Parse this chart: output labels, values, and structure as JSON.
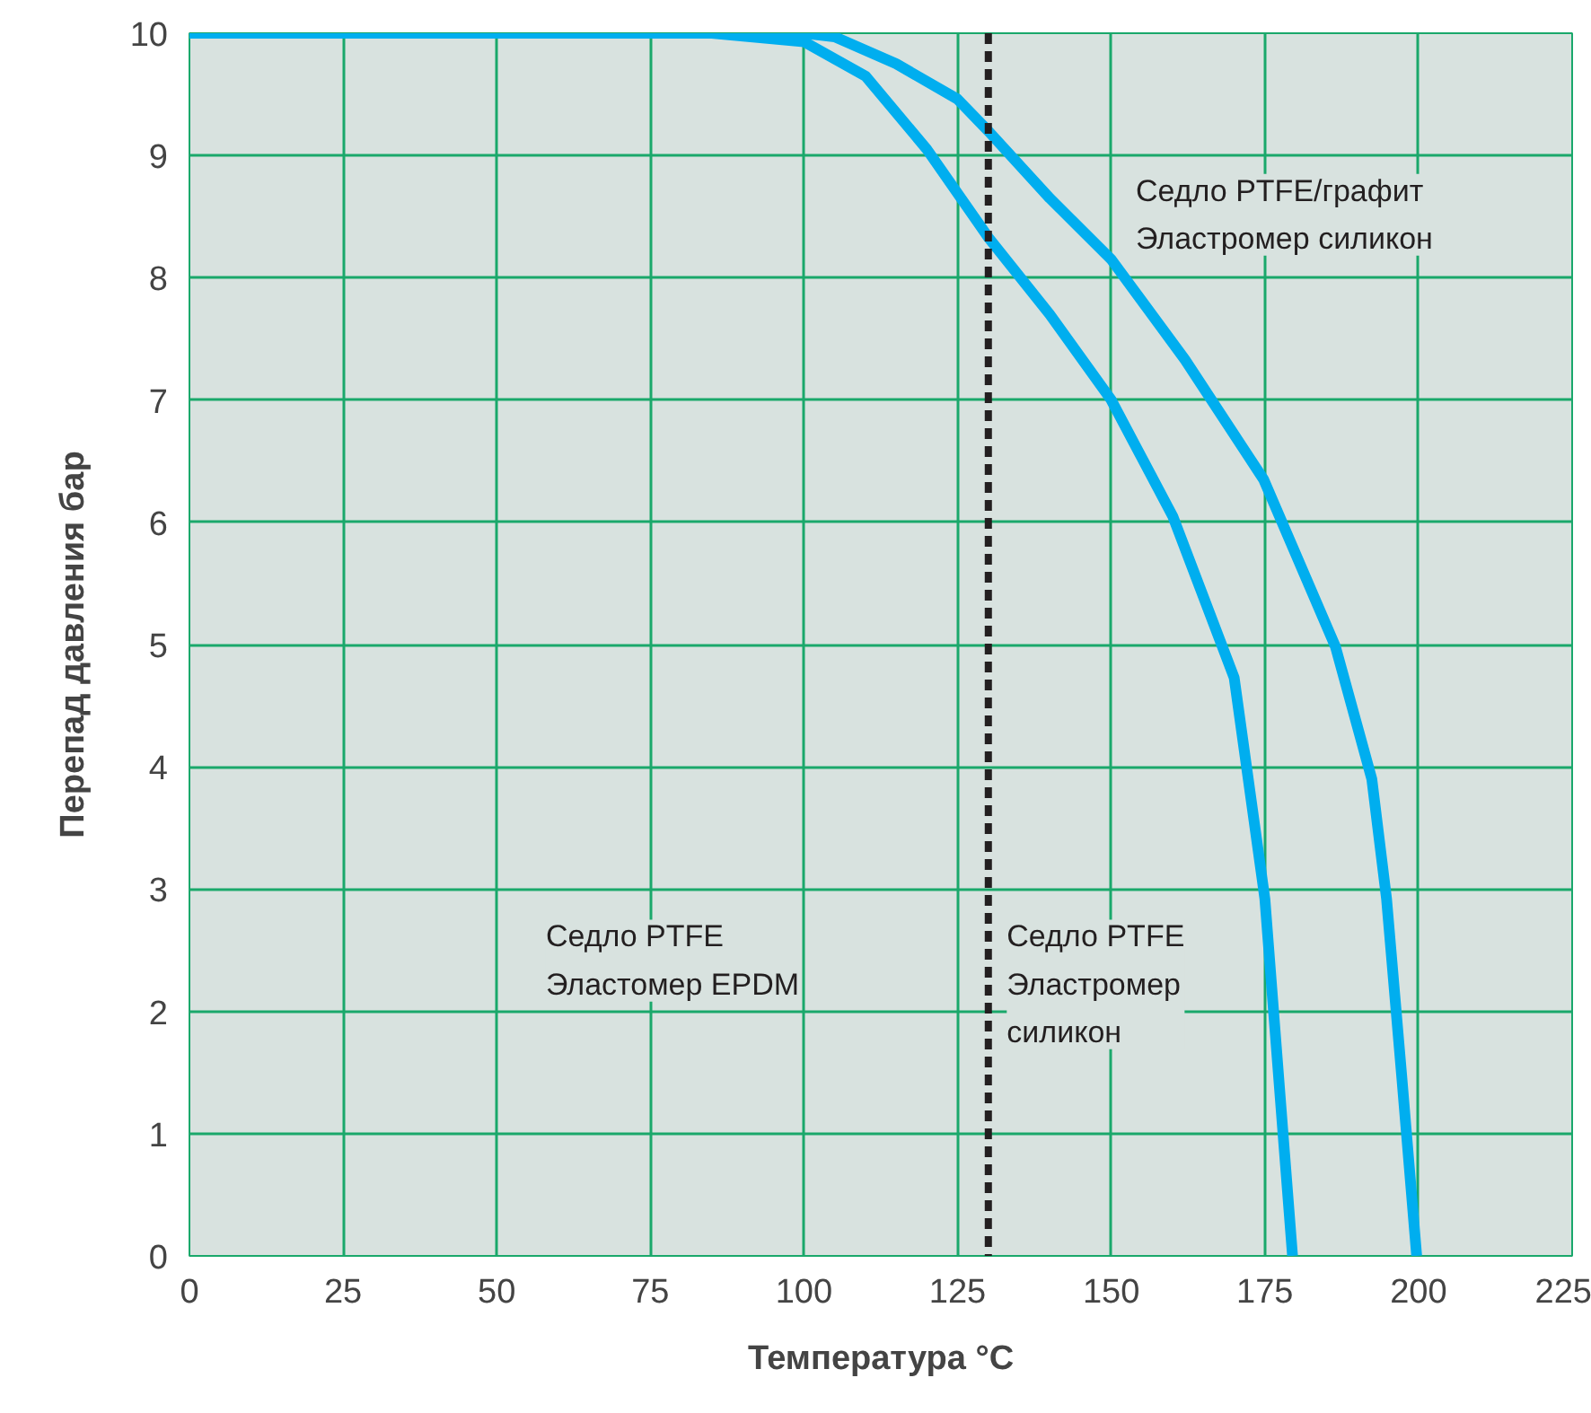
{
  "chart_data": {
    "type": "line",
    "xlabel": "Температура °C",
    "ylabel": "Перепад давления бар",
    "xlim": [
      0,
      225
    ],
    "ylim": [
      0,
      10
    ],
    "xticks": [
      0,
      25,
      50,
      75,
      100,
      125,
      150,
      175,
      200,
      225
    ],
    "yticks": [
      0,
      1,
      2,
      3,
      4,
      5,
      6,
      7,
      8,
      9,
      10
    ],
    "grid": true,
    "line_style": "solid",
    "marker": "none",
    "series": [
      {
        "color": "#00aeef",
        "x": [
          0,
          85,
          100,
          110,
          120,
          130,
          140,
          150,
          160,
          170,
          175,
          178,
          179.5
        ],
        "values": [
          10,
          10,
          9.93,
          9.65,
          9.05,
          8.33,
          7.7,
          7.0,
          6.05,
          4.73,
          2.92,
          0.97,
          0
        ]
      },
      {
        "color": "#00aeef",
        "x": [
          0,
          100,
          105,
          115,
          125,
          130,
          140,
          150,
          162,
          174.8,
          186.5,
          192.4,
          194.8,
          197.3,
          199.7
        ],
        "values": [
          10,
          10,
          9.97,
          9.75,
          9.46,
          9.2,
          8.65,
          8.15,
          7.33,
          6.35,
          4.98,
          3.9,
          2.92,
          1.45,
          0
        ]
      }
    ],
    "ref_lines": [
      {
        "axis": "x",
        "value": 130,
        "color": "#231f20",
        "line_style": "dashed"
      }
    ],
    "annotations": [
      "Седло PTFE/графит\nЭластромер силикон",
      "Седло PTFE\nЭластомер EPDM",
      "Седло PTFE\nЭластромер\nсиликон"
    ]
  }
}
